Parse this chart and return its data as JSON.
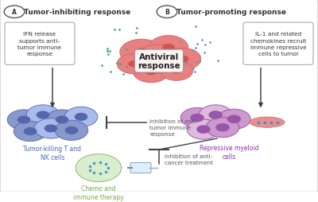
{
  "bg_color": "#ffffff",
  "border_color": "#cccccc",
  "title_A": "Tumor-inhibiting response",
  "title_B": "Tumor-promoting response",
  "center_label": "Antiviral\nresponse",
  "box_left_text": "IFN release\nsupports anti-\ntumor immune\nresponse",
  "box_right_text": "IL-1 and related\nchemokines recruit\nimmune repressive\ncells to tumor",
  "label_TK": "Tumor-killing T and\nNK cells",
  "label_RM": "Repressive myeloid\ncells",
  "label_chemo": "Chemo and\nimmune therapy",
  "label_inhib1": "Inhibition of anti-\ntumor immune\nresponse",
  "label_inhib2": "Inhibition of anti-\ncancer treatment",
  "tumor_color": "#e8909090",
  "tumor_border": "#cc6666",
  "tumor_nucleus": "#b84444",
  "tk_cell_outer": "#8899cc",
  "tk_cell_inner": "#aabbee",
  "tk_cell_nucleus": "#5566aa",
  "rm_cell_outer": "#cc99cc",
  "rm_cell_inner": "#ddbbdd",
  "rm_cell_nucleus": "#9955aa",
  "chemo_circle": "#d8eecc",
  "chemo_dot": "#4499cc",
  "chemo_border": "#99bb88",
  "dot_left": "#44aa77",
  "dot_right": "#6699cc",
  "arrow_color": "#444444",
  "text_blue": "#4466bb",
  "text_purple": "#8833aa",
  "text_green": "#77aa44",
  "text_dark": "#333333",
  "label_inhib_color": "#555555"
}
